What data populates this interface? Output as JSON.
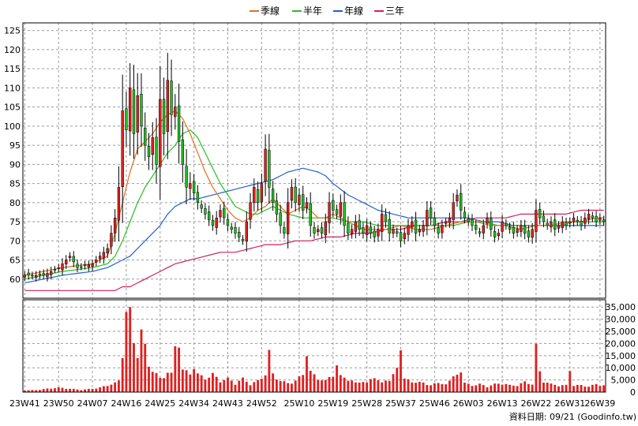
{
  "chart_data": {
    "type": "candlestick_with_volume",
    "legend": [
      {
        "name": "季線",
        "color": "#e07020"
      },
      {
        "name": "半年",
        "color": "#22c022"
      },
      {
        "name": "年線",
        "color": "#2060d0"
      },
      {
        "name": "三年",
        "color": "#d02060"
      }
    ],
    "footer": "資料日期: 09/21 (Goodinfo.tw)",
    "price_axis": {
      "ylim": [
        55,
        127
      ],
      "ticks": [
        60,
        65,
        70,
        75,
        80,
        85,
        90,
        95,
        100,
        105,
        110,
        115,
        120,
        125
      ]
    },
    "volume_axis": {
      "ylim": [
        0,
        38000
      ],
      "ticks": [
        0,
        5000,
        10000,
        15000,
        20000,
        25000,
        30000,
        35000
      ],
      "tick_labels": [
        "0",
        "5,000",
        "10,000",
        "15,000",
        "20,000",
        "25,000",
        "30,000",
        "35,000"
      ]
    },
    "x_labels": [
      {
        "label": "23W41",
        "week": 0
      },
      {
        "label": "23W50",
        "week": 9
      },
      {
        "label": "24W07",
        "week": 18
      },
      {
        "label": "24W16",
        "week": 27
      },
      {
        "label": "24W25",
        "week": 36
      },
      {
        "label": "24W34",
        "week": 45
      },
      {
        "label": "24W43",
        "week": 54
      },
      {
        "label": "24W52",
        "week": 63
      },
      {
        "label": "25W10",
        "week": 73
      },
      {
        "label": "25W19",
        "week": 82
      },
      {
        "label": "25W28",
        "week": 91
      },
      {
        "label": "25W37",
        "week": 100
      },
      {
        "label": "25W46",
        "week": 109
      },
      {
        "label": "26W03",
        "week": 118
      },
      {
        "label": "26W13",
        "week": 127
      },
      {
        "label": "26W22",
        "week": 136
      },
      {
        "label": "26W31",
        "week": 145
      },
      {
        "label": "26W39",
        "week": 153
      }
    ],
    "price_anchors": [
      [
        0,
        61
      ],
      [
        5,
        61
      ],
      [
        9,
        63
      ],
      [
        12,
        66
      ],
      [
        14,
        63
      ],
      [
        18,
        64
      ],
      [
        22,
        68
      ],
      [
        24,
        76
      ],
      [
        25,
        84
      ],
      [
        26,
        104
      ],
      [
        27,
        99
      ],
      [
        28,
        110
      ],
      [
        29,
        98
      ],
      [
        30,
        108
      ],
      [
        31,
        100
      ],
      [
        32,
        95
      ],
      [
        33,
        92
      ],
      [
        34,
        97
      ],
      [
        35,
        90
      ],
      [
        36,
        107
      ],
      [
        37,
        98
      ],
      [
        38,
        112
      ],
      [
        39,
        103
      ],
      [
        40,
        105
      ],
      [
        41,
        96
      ],
      [
        42,
        90
      ],
      [
        43,
        84
      ],
      [
        44,
        85
      ],
      [
        46,
        80
      ],
      [
        48,
        77
      ],
      [
        50,
        74
      ],
      [
        52,
        78
      ],
      [
        54,
        74
      ],
      [
        56,
        72
      ],
      [
        58,
        70
      ],
      [
        59,
        75
      ],
      [
        60,
        80
      ],
      [
        61,
        84
      ],
      [
        62,
        80
      ],
      [
        63,
        85
      ],
      [
        64,
        94
      ],
      [
        65,
        84
      ],
      [
        66,
        80
      ],
      [
        67,
        77
      ],
      [
        68,
        74
      ],
      [
        69,
        72
      ],
      [
        70,
        80
      ],
      [
        71,
        84
      ],
      [
        72,
        80
      ],
      [
        73,
        82
      ],
      [
        74,
        78
      ],
      [
        75,
        80
      ],
      [
        76,
        74
      ],
      [
        77,
        72
      ],
      [
        78,
        73
      ],
      [
        79,
        72
      ],
      [
        80,
        75
      ],
      [
        81,
        80
      ],
      [
        82,
        78
      ],
      [
        83,
        77
      ],
      [
        84,
        80
      ],
      [
        85,
        74
      ],
      [
        86,
        72
      ],
      [
        87,
        73
      ],
      [
        88,
        75
      ],
      [
        89,
        73
      ],
      [
        90,
        72
      ],
      [
        91,
        74
      ],
      [
        92,
        72
      ],
      [
        93,
        71
      ],
      [
        94,
        73
      ],
      [
        95,
        77
      ],
      [
        96,
        75
      ],
      [
        97,
        72
      ],
      [
        98,
        73
      ],
      [
        99,
        72
      ],
      [
        100,
        70
      ],
      [
        101,
        72
      ],
      [
        102,
        74
      ],
      [
        103,
        75
      ],
      [
        104,
        72
      ],
      [
        105,
        73
      ],
      [
        106,
        74
      ],
      [
        107,
        78
      ],
      [
        108,
        76
      ],
      [
        109,
        74
      ],
      [
        110,
        72
      ],
      [
        111,
        74
      ],
      [
        112,
        75
      ],
      [
        113,
        76
      ],
      [
        114,
        80
      ],
      [
        115,
        82
      ],
      [
        116,
        78
      ],
      [
        117,
        76
      ],
      [
        118,
        75
      ],
      [
        119,
        74
      ],
      [
        120,
        73
      ],
      [
        121,
        72
      ],
      [
        122,
        74
      ],
      [
        123,
        76
      ],
      [
        124,
        73
      ],
      [
        125,
        71
      ],
      [
        126,
        72
      ],
      [
        127,
        75
      ],
      [
        128,
        74
      ],
      [
        129,
        73
      ],
      [
        130,
        72
      ],
      [
        131,
        73
      ],
      [
        132,
        74
      ],
      [
        133,
        72
      ],
      [
        134,
        71
      ],
      [
        135,
        73
      ],
      [
        136,
        78
      ],
      [
        137,
        76
      ],
      [
        138,
        75
      ],
      [
        139,
        74
      ],
      [
        140,
        75
      ],
      [
        141,
        73
      ],
      [
        142,
        74
      ],
      [
        143,
        75
      ],
      [
        144,
        74
      ],
      [
        145,
        75
      ],
      [
        146,
        76
      ],
      [
        147,
        75
      ],
      [
        148,
        74
      ],
      [
        149,
        76
      ],
      [
        150,
        77
      ],
      [
        151,
        76
      ],
      [
        152,
        75
      ],
      [
        153,
        76
      ],
      [
        154,
        75
      ]
    ],
    "volume_anchors": [
      [
        0,
        800
      ],
      [
        3,
        900
      ],
      [
        6,
        1500
      ],
      [
        9,
        2000
      ],
      [
        12,
        1500
      ],
      [
        15,
        1000
      ],
      [
        18,
        1500
      ],
      [
        20,
        2000
      ],
      [
        22,
        3000
      ],
      [
        24,
        4000
      ],
      [
        25,
        5000
      ],
      [
        26,
        18000
      ],
      [
        27,
        36000
      ],
      [
        28,
        35000
      ],
      [
        29,
        22000
      ],
      [
        30,
        18000
      ],
      [
        31,
        27000
      ],
      [
        32,
        20000
      ],
      [
        33,
        12000
      ],
      [
        34,
        10000
      ],
      [
        35,
        8000
      ],
      [
        36,
        6000
      ],
      [
        37,
        7000
      ],
      [
        38,
        9000
      ],
      [
        39,
        8000
      ],
      [
        40,
        20000
      ],
      [
        41,
        24000
      ],
      [
        42,
        10000
      ],
      [
        43,
        9000
      ],
      [
        44,
        8000
      ],
      [
        45,
        12000
      ],
      [
        46,
        8000
      ],
      [
        48,
        6000
      ],
      [
        50,
        8000
      ],
      [
        52,
        5000
      ],
      [
        54,
        6000
      ],
      [
        56,
        4000
      ],
      [
        58,
        6000
      ],
      [
        60,
        3500
      ],
      [
        62,
        5000
      ],
      [
        64,
        8000
      ],
      [
        65,
        17500
      ],
      [
        66,
        8000
      ],
      [
        68,
        5000
      ],
      [
        70,
        4000
      ],
      [
        72,
        5000
      ],
      [
        74,
        8000
      ],
      [
        75,
        18000
      ],
      [
        76,
        9000
      ],
      [
        78,
        6000
      ],
      [
        80,
        5000
      ],
      [
        82,
        8000
      ],
      [
        83,
        12000
      ],
      [
        84,
        7000
      ],
      [
        86,
        6000
      ],
      [
        88,
        4000
      ],
      [
        90,
        5000
      ],
      [
        91,
        4000
      ],
      [
        93,
        7000
      ],
      [
        95,
        4000
      ],
      [
        97,
        6000
      ],
      [
        99,
        10000
      ],
      [
        100,
        19000
      ],
      [
        101,
        7000
      ],
      [
        103,
        4000
      ],
      [
        105,
        5000
      ],
      [
        107,
        3000
      ],
      [
        109,
        4000
      ],
      [
        111,
        3500
      ],
      [
        113,
        5000
      ],
      [
        115,
        8000
      ],
      [
        116,
        10000
      ],
      [
        117,
        4000
      ],
      [
        119,
        3000
      ],
      [
        121,
        3500
      ],
      [
        123,
        2500
      ],
      [
        125,
        3500
      ],
      [
        127,
        4000
      ],
      [
        129,
        3000
      ],
      [
        131,
        3000
      ],
      [
        133,
        4500
      ],
      [
        135,
        3500
      ],
      [
        136,
        20000
      ],
      [
        137,
        9000
      ],
      [
        138,
        5000
      ],
      [
        140,
        3500
      ],
      [
        142,
        3000
      ],
      [
        144,
        3000
      ],
      [
        145,
        10000
      ],
      [
        146,
        3000
      ],
      [
        148,
        3000
      ],
      [
        150,
        2500
      ],
      [
        152,
        3500
      ],
      [
        154,
        3000
      ]
    ],
    "ma_quarter": [
      [
        0,
        61
      ],
      [
        10,
        63
      ],
      [
        18,
        64
      ],
      [
        22,
        66
      ],
      [
        24,
        72
      ],
      [
        26,
        80
      ],
      [
        28,
        88
      ],
      [
        30,
        94
      ],
      [
        32,
        96
      ],
      [
        34,
        98
      ],
      [
        36,
        101
      ],
      [
        38,
        103
      ],
      [
        40,
        104
      ],
      [
        42,
        102
      ],
      [
        44,
        98
      ],
      [
        46,
        93
      ],
      [
        48,
        88
      ],
      [
        50,
        84
      ],
      [
        52,
        81
      ],
      [
        54,
        78
      ],
      [
        56,
        76
      ],
      [
        58,
        75
      ],
      [
        60,
        76
      ],
      [
        62,
        78
      ],
      [
        64,
        79
      ],
      [
        66,
        81
      ],
      [
        68,
        79
      ],
      [
        70,
        77
      ],
      [
        72,
        78
      ],
      [
        74,
        79
      ],
      [
        76,
        78
      ],
      [
        78,
        76
      ],
      [
        80,
        76
      ],
      [
        82,
        77
      ],
      [
        84,
        76
      ],
      [
        86,
        75
      ],
      [
        88,
        74
      ],
      [
        90,
        73
      ],
      [
        92,
        73
      ],
      [
        96,
        73
      ],
      [
        100,
        74
      ],
      [
        104,
        73
      ],
      [
        108,
        73
      ],
      [
        112,
        74
      ],
      [
        116,
        75
      ],
      [
        120,
        75
      ],
      [
        124,
        74
      ],
      [
        128,
        74
      ],
      [
        132,
        73
      ],
      [
        136,
        74
      ],
      [
        140,
        74
      ],
      [
        144,
        75
      ],
      [
        148,
        75
      ],
      [
        152,
        76
      ],
      [
        154,
        76
      ]
    ],
    "ma_half": [
      [
        0,
        60
      ],
      [
        10,
        62
      ],
      [
        18,
        63
      ],
      [
        22,
        64
      ],
      [
        24,
        66
      ],
      [
        26,
        70
      ],
      [
        28,
        75
      ],
      [
        30,
        80
      ],
      [
        32,
        84
      ],
      [
        34,
        87
      ],
      [
        36,
        90
      ],
      [
        38,
        93
      ],
      [
        40,
        95
      ],
      [
        42,
        98
      ],
      [
        44,
        99
      ],
      [
        46,
        97
      ],
      [
        48,
        93
      ],
      [
        50,
        89
      ],
      [
        52,
        85
      ],
      [
        54,
        82
      ],
      [
        56,
        79
      ],
      [
        58,
        78
      ],
      [
        60,
        77
      ],
      [
        62,
        77
      ],
      [
        64,
        78
      ],
      [
        66,
        79
      ],
      [
        68,
        78
      ],
      [
        70,
        77
      ],
      [
        74,
        76
      ],
      [
        78,
        76
      ],
      [
        82,
        76
      ],
      [
        86,
        75
      ],
      [
        90,
        75
      ],
      [
        94,
        74
      ],
      [
        98,
        74
      ],
      [
        102,
        74
      ],
      [
        106,
        74
      ],
      [
        110,
        74
      ],
      [
        114,
        74
      ],
      [
        118,
        75
      ],
      [
        122,
        75
      ],
      [
        126,
        74
      ],
      [
        130,
        74
      ],
      [
        134,
        74
      ],
      [
        138,
        74
      ],
      [
        142,
        74
      ],
      [
        146,
        75
      ],
      [
        150,
        75
      ],
      [
        154,
        75
      ]
    ],
    "ma_year": [
      [
        0,
        59
      ],
      [
        10,
        61
      ],
      [
        18,
        62
      ],
      [
        22,
        63
      ],
      [
        24,
        64
      ],
      [
        26,
        65
      ],
      [
        28,
        66
      ],
      [
        30,
        68
      ],
      [
        32,
        70
      ],
      [
        34,
        72
      ],
      [
        36,
        74
      ],
      [
        38,
        77
      ],
      [
        40,
        79
      ],
      [
        42,
        80
      ],
      [
        44,
        81
      ],
      [
        46,
        81
      ],
      [
        50,
        82
      ],
      [
        54,
        83
      ],
      [
        58,
        84
      ],
      [
        62,
        85
      ],
      [
        66,
        86
      ],
      [
        70,
        88
      ],
      [
        74,
        89
      ],
      [
        78,
        88
      ],
      [
        80,
        87
      ],
      [
        82,
        85
      ],
      [
        86,
        82
      ],
      [
        90,
        80
      ],
      [
        94,
        78
      ],
      [
        98,
        77
      ],
      [
        102,
        76
      ],
      [
        106,
        76
      ],
      [
        110,
        76
      ],
      [
        114,
        76
      ],
      [
        118,
        76
      ],
      [
        122,
        75
      ],
      [
        126,
        75
      ],
      [
        130,
        74
      ],
      [
        134,
        74
      ],
      [
        138,
        74
      ],
      [
        142,
        74
      ],
      [
        146,
        74
      ],
      [
        150,
        74
      ],
      [
        154,
        74
      ]
    ],
    "ma_3year": [
      [
        0,
        57
      ],
      [
        10,
        57
      ],
      [
        20,
        57
      ],
      [
        24,
        57
      ],
      [
        26,
        58
      ],
      [
        28,
        58
      ],
      [
        30,
        59
      ],
      [
        32,
        60
      ],
      [
        34,
        61
      ],
      [
        36,
        62
      ],
      [
        38,
        63
      ],
      [
        40,
        64
      ],
      [
        44,
        65
      ],
      [
        48,
        66
      ],
      [
        52,
        67
      ],
      [
        56,
        67
      ],
      [
        60,
        68
      ],
      [
        64,
        69
      ],
      [
        68,
        69
      ],
      [
        72,
        70
      ],
      [
        76,
        70
      ],
      [
        80,
        71
      ],
      [
        84,
        71
      ],
      [
        88,
        72
      ],
      [
        92,
        72
      ],
      [
        96,
        73
      ],
      [
        100,
        73
      ],
      [
        104,
        74
      ],
      [
        108,
        74
      ],
      [
        112,
        75
      ],
      [
        116,
        75
      ],
      [
        120,
        76
      ],
      [
        124,
        76
      ],
      [
        128,
        76
      ],
      [
        132,
        77
      ],
      [
        136,
        77
      ],
      [
        140,
        77
      ],
      [
        144,
        77
      ],
      [
        148,
        78
      ],
      [
        152,
        78
      ],
      [
        154,
        78
      ]
    ]
  }
}
